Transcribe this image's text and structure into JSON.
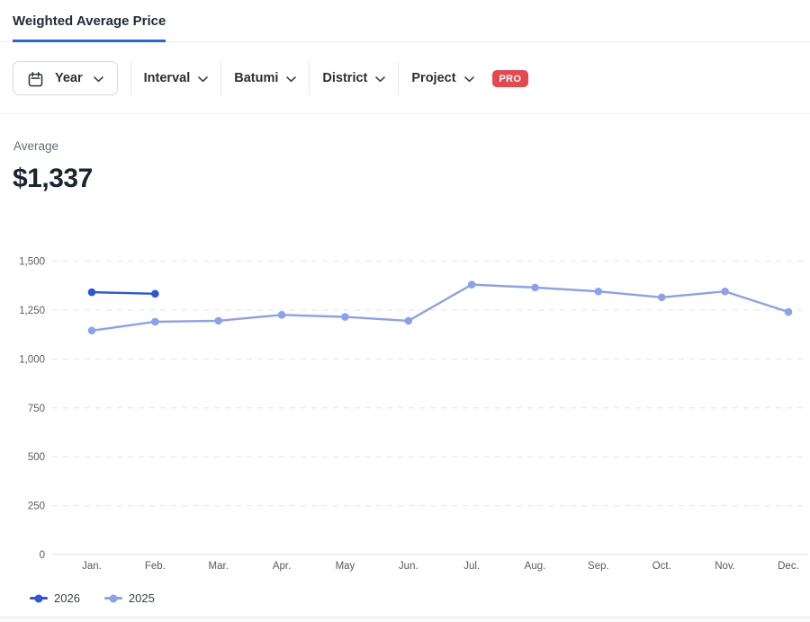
{
  "header": {
    "title": "Weighted Average Price"
  },
  "filters": {
    "year_button": {
      "label": "Year",
      "icon": "calendar-icon"
    },
    "items": [
      {
        "label": "Interval"
      },
      {
        "label": "Batumi"
      },
      {
        "label": "District"
      },
      {
        "label": "Project",
        "badge": "PRO"
      }
    ]
  },
  "stats": {
    "label": "Average",
    "value": "$1,337"
  },
  "colors": {
    "accent": "#2563eb",
    "pro_badge": "#e5484d"
  },
  "chart_data": {
    "type": "line",
    "categories": [
      "Jan.",
      "Feb.",
      "Mar.",
      "Apr.",
      "May",
      "Jun.",
      "Jul.",
      "Aug.",
      "Sep.",
      "Oct.",
      "Nov.",
      "Dec."
    ],
    "series": [
      {
        "name": "2026",
        "color": "#2b57d8",
        "values": [
          1341,
          1333,
          null,
          null,
          null,
          null,
          null,
          null,
          null,
          null,
          null,
          null
        ]
      },
      {
        "name": "2025",
        "color": "#8ba1eb",
        "values": [
          1145,
          1190,
          1195,
          1225,
          1215,
          1195,
          1380,
          1365,
          1345,
          1315,
          1345,
          1240
        ]
      }
    ],
    "ylim": [
      0,
      1500
    ],
    "yticks": [
      0,
      250,
      500,
      750,
      1000,
      1250,
      1500
    ],
    "ytick_labels": [
      "0",
      "250",
      "500",
      "750",
      "1,000",
      "1,250",
      "1,500"
    ],
    "grid": "horizontal-dashed",
    "legend_position": "bottom-left",
    "title": "Weighted Average Price",
    "xlabel": "",
    "ylabel": ""
  }
}
